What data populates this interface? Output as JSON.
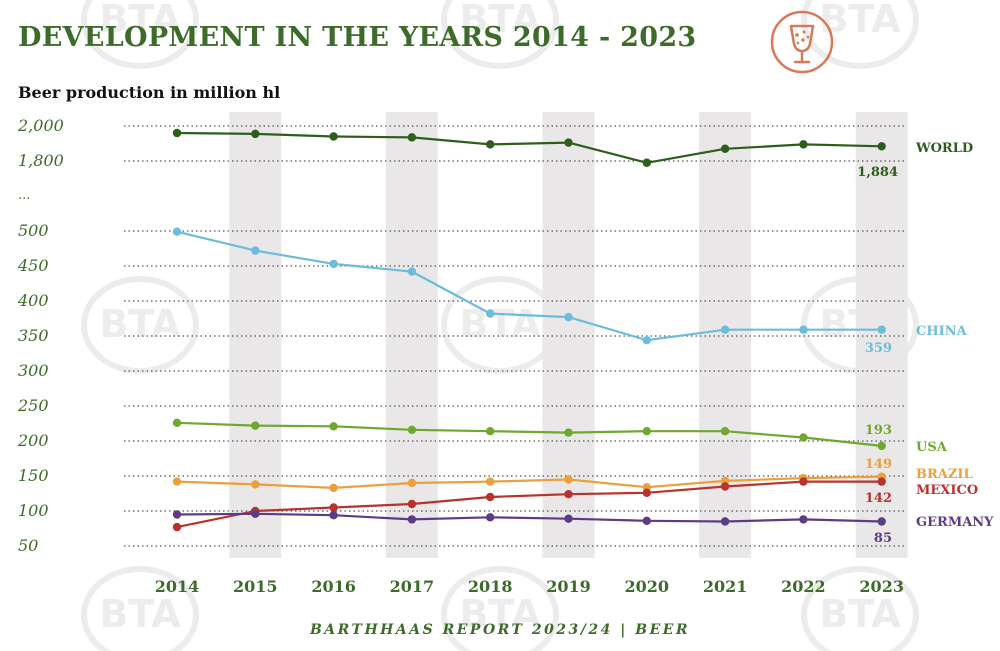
{
  "title": "DEVELOPMENT IN THE YEARS 2014 - 2023",
  "subtitle": "Beer production in million hl",
  "footer": "BARTHHAAS REPORT 2023/24 | BEER",
  "watermark": "BTA",
  "icon": "beer-glass-icon",
  "colors": {
    "title": "#3d6b2a",
    "axis_text": "#3d6b2a",
    "stripe": "#e9e7e7",
    "grid": "#555555",
    "icon": "#d9795a"
  },
  "chart_data": {
    "type": "line",
    "title": "DEVELOPMENT IN THE YEARS 2014 - 2023",
    "ylabel": "Beer production in million hl",
    "xlabel": "",
    "categories": [
      "2014",
      "2015",
      "2016",
      "2017",
      "2018",
      "2019",
      "2020",
      "2021",
      "2022",
      "2023"
    ],
    "y_ticks_lower": [
      "50",
      "100",
      "150",
      "200",
      "250",
      "300",
      "350",
      "400",
      "450",
      "500"
    ],
    "y_tick_break": "...",
    "y_ticks_upper": [
      "1,800",
      "2,000"
    ],
    "ylim_lower": [
      50,
      500
    ],
    "ylim_upper": [
      1800,
      2000
    ],
    "grid": true,
    "legend": "right",
    "series": [
      {
        "name": "WORLD",
        "color": "#2e5e1e",
        "axis": "upper",
        "values": [
          1960,
          1955,
          1940,
          1935,
          1895,
          1905,
          1790,
          1870,
          1895,
          1884
        ],
        "end_label": "1,884"
      },
      {
        "name": "CHINA",
        "color": "#6cbcdc",
        "axis": "lower",
        "values": [
          499,
          472,
          453,
          442,
          382,
          377,
          344,
          359,
          359,
          359
        ],
        "end_label": "359"
      },
      {
        "name": "USA",
        "color": "#6ea82f",
        "axis": "lower",
        "values": [
          226,
          222,
          221,
          216,
          214,
          212,
          214,
          214,
          205,
          193
        ],
        "end_label": "193"
      },
      {
        "name": "BRAZIL",
        "color": "#e9a03d",
        "axis": "lower",
        "values": [
          142,
          138,
          133,
          140,
          142,
          145,
          134,
          143,
          147,
          149
        ],
        "end_label": "149"
      },
      {
        "name": "MEXICO",
        "color": "#b8322e",
        "axis": "lower",
        "values": [
          77,
          100,
          105,
          110,
          120,
          124,
          126,
          135,
          142,
          142
        ],
        "end_label": "142"
      },
      {
        "name": "GERMANY",
        "color": "#5c3c86",
        "axis": "lower",
        "values": [
          95,
          96,
          94,
          88,
          91,
          89,
          86,
          85,
          88,
          85
        ],
        "end_label": "85"
      }
    ]
  }
}
